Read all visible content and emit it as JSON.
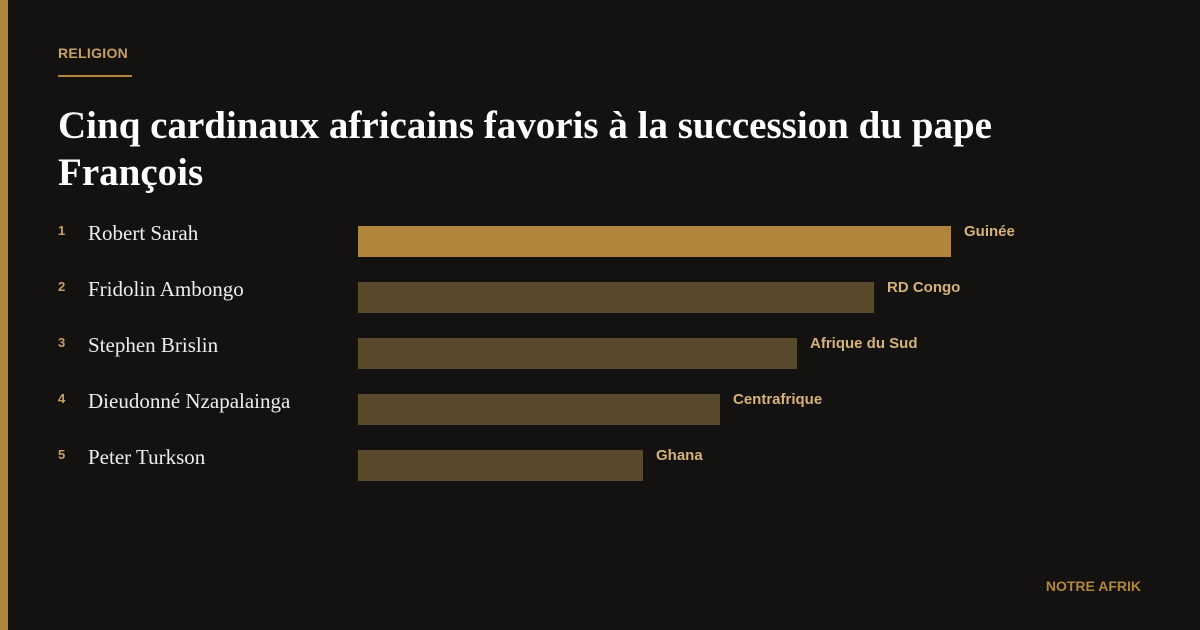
{
  "header": {
    "section": "RELIGION",
    "title": "Cinq cardinaux africains favoris à la succession du pape François"
  },
  "items": [
    {
      "rank": 1,
      "name": "Robert Sarah",
      "country": "Guinée"
    },
    {
      "rank": 2,
      "name": "Fridolin Ambongo",
      "country": "RD Congo"
    },
    {
      "rank": 3,
      "name": "Stephen Brislin",
      "country": "Afrique du Sud"
    },
    {
      "rank": 4,
      "name": "Dieudonné Nzapalainga",
      "country": "Centrafrique"
    },
    {
      "rank": 5,
      "name": "Peter Turkson",
      "country": "Ghana"
    }
  ],
  "footer": {
    "brand": "NOTRE AFRIK"
  }
}
